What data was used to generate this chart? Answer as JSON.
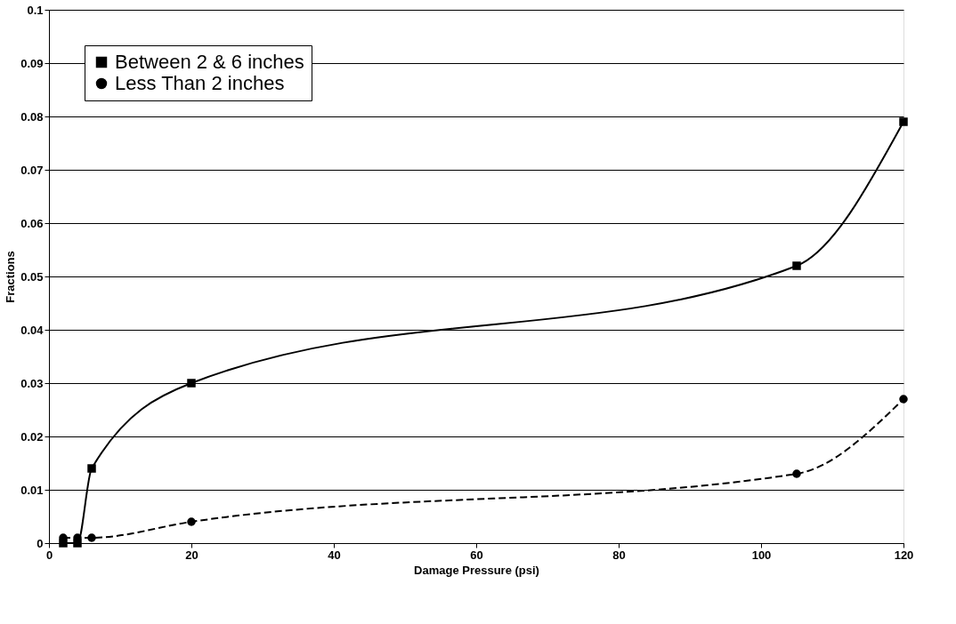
{
  "chart_data": {
    "type": "line",
    "xlabel": "Damage Pressure (psi)",
    "ylabel": "Fractions",
    "x": [
      2,
      4,
      6,
      20,
      105,
      120
    ],
    "series": [
      {
        "name": "Between 2 & 6 inches",
        "color": "#000000",
        "values": [
          0,
          0,
          0.014,
          0.03,
          0.052,
          0.079
        ],
        "marker": "square",
        "line_style": "solid"
      },
      {
        "name": "Less Than 2 inches",
        "color": "#000000",
        "values": [
          0.001,
          0.001,
          0.001,
          0.004,
          0.013,
          0.027
        ],
        "marker": "circle",
        "line_style": "dashed"
      }
    ],
    "xlim": [
      0,
      120
    ],
    "xticks": [
      0,
      20,
      40,
      60,
      80,
      100,
      120
    ],
    "ylim": [
      0,
      0.1
    ],
    "yticks": [
      0,
      0.01,
      0.02,
      0.03,
      0.04,
      0.05,
      0.06,
      0.07,
      0.08,
      0.09,
      0.1
    ],
    "grid": "y",
    "legend": "top left"
  }
}
